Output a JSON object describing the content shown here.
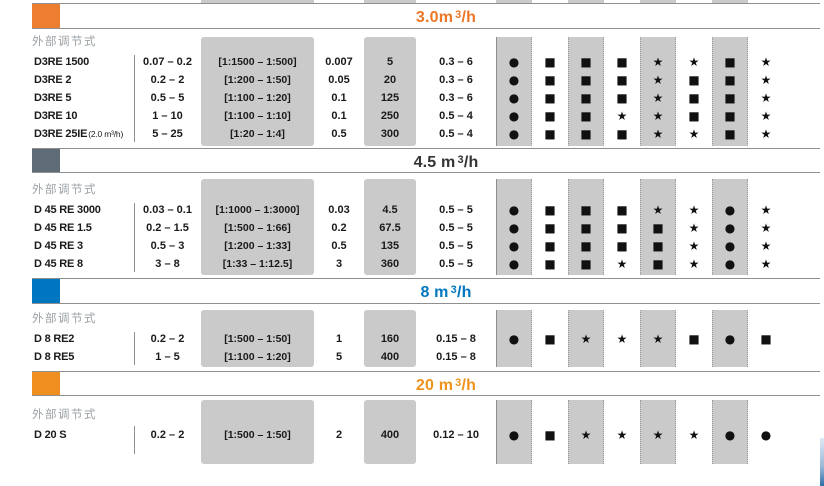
{
  "table": {
    "group_label": "外部调节式",
    "legend_symbols": {
      "circle": "●",
      "square": "■",
      "star": "★"
    },
    "sections": [
      {
        "header": {
          "text": "3.0m",
          "sup": "3",
          "suffix": "/h",
          "color": "#ED7627",
          "square": "#ED7D31"
        },
        "rows": [
          {
            "model": "D3RE 1500",
            "note": "",
            "capacity_l_h": "0.07 – 0.2",
            "turndown_ratio": "[1:1500 – 1:500]",
            "ml_per_stroke": "0.007",
            "max_strokes_min": "5",
            "pressure_bar": "0.3 – 6",
            "symbols": [
              "●",
              "■",
              "■",
              "■",
              "★",
              "★",
              "■",
              "★"
            ]
          },
          {
            "model": "D3RE 2",
            "note": "",
            "capacity_l_h": "0.2 – 2",
            "turndown_ratio": "[1:200 – 1:50]",
            "ml_per_stroke": "0.05",
            "max_strokes_min": "20",
            "pressure_bar": "0.3 – 6",
            "symbols": [
              "●",
              "■",
              "■",
              "■",
              "★",
              "■",
              "■",
              "★"
            ]
          },
          {
            "model": "D3RE 5",
            "note": "",
            "capacity_l_h": "0.5 – 5",
            "turndown_ratio": "[1:100 – 1:20]",
            "ml_per_stroke": "0.1",
            "max_strokes_min": "125",
            "pressure_bar": "0.3 – 6",
            "symbols": [
              "●",
              "■",
              "■",
              "■",
              "★",
              "■",
              "■",
              "★"
            ]
          },
          {
            "model": "D3RE 10",
            "note": "",
            "capacity_l_h": "1 – 10",
            "turndown_ratio": "[1:100 – 1:10]",
            "ml_per_stroke": "0.1",
            "max_strokes_min": "250",
            "pressure_bar": "0.5 – 4",
            "symbols": [
              "●",
              "■",
              "■",
              "★",
              "★",
              "■",
              "■",
              "★"
            ]
          },
          {
            "model": "D3RE 25IE",
            "note": "(2.0 m³/h)",
            "capacity_l_h": "5 – 25",
            "turndown_ratio": "[1:20 – 1:4]",
            "ml_per_stroke": "0.5",
            "max_strokes_min": "300",
            "pressure_bar": "0.5 – 4",
            "symbols": [
              "●",
              "■",
              "■",
              "■",
              "★",
              "★",
              "■",
              "★"
            ]
          }
        ]
      },
      {
        "header": {
          "text": "4.5 m",
          "sup": "3",
          "suffix": "/h",
          "color": "#333333",
          "square": "#5E6C77"
        },
        "rows": [
          {
            "model": "D 45 RE 3000",
            "note": "",
            "capacity_l_h": "0.03 – 0.1",
            "turndown_ratio": "[1:1000 – 1:3000]",
            "ml_per_stroke": "0.03",
            "max_strokes_min": "4.5",
            "pressure_bar": "0.5 – 5",
            "symbols": [
              "●",
              "■",
              "■",
              "■",
              "★",
              "★",
              "●",
              "★"
            ]
          },
          {
            "model": "D 45 RE 1.5",
            "note": "",
            "capacity_l_h": "0.2 – 1.5",
            "turndown_ratio": "[1:500 – 1:66]",
            "ml_per_stroke": "0.2",
            "max_strokes_min": "67.5",
            "pressure_bar": "0.5 – 5",
            "symbols": [
              "●",
              "■",
              "■",
              "■",
              "■",
              "★",
              "●",
              "★"
            ]
          },
          {
            "model": "D 45 RE 3",
            "note": "",
            "capacity_l_h": "0.5 – 3",
            "turndown_ratio": "[1:200 – 1:33]",
            "ml_per_stroke": "0.5",
            "max_strokes_min": "135",
            "pressure_bar": "0.5 – 5",
            "symbols": [
              "●",
              "■",
              "■",
              "■",
              "■",
              "★",
              "●",
              "★"
            ]
          },
          {
            "model": "D 45 RE 8",
            "note": "",
            "capacity_l_h": "3 – 8",
            "turndown_ratio": "[1:33 – 1:12.5]",
            "ml_per_stroke": "3",
            "max_strokes_min": "360",
            "pressure_bar": "0.5 – 5",
            "symbols": [
              "●",
              "■",
              "■",
              "★",
              "■",
              "★",
              "●",
              "★"
            ]
          }
        ]
      },
      {
        "header": {
          "text": "8 m",
          "sup": "3",
          "suffix": "/h",
          "color": "#0076C0",
          "square": "#0076C0"
        },
        "rows": [
          {
            "model": "D 8 RE2",
            "note": "",
            "capacity_l_h": "0.2 – 2",
            "turndown_ratio": "[1:500 – 1:50]",
            "ml_per_stroke": "1",
            "max_strokes_min": "160",
            "pressure_bar": "0.15 – 8",
            "symbols": []
          },
          {
            "model": "D 8 RE5",
            "note": "",
            "capacity_l_h": "1 – 5",
            "turndown_ratio": "[1:100 – 1:20]",
            "ml_per_stroke": "5",
            "max_strokes_min": "400",
            "pressure_bar": "0.15 – 8",
            "symbols": []
          }
        ],
        "shared_symbols": [
          "●",
          "■",
          "★",
          "★",
          "★",
          "■",
          "●",
          "■"
        ]
      },
      {
        "header": {
          "text": "20 m",
          "sup": "3",
          "suffix": "/h",
          "color": "#F0931E",
          "square": "#EF8F1F"
        },
        "rows": [
          {
            "model": "D 20 S",
            "note": "",
            "capacity_l_h": "0.2 – 2",
            "turndown_ratio": "[1:500 – 1:50]",
            "ml_per_stroke": "2",
            "max_strokes_min": "400",
            "pressure_bar": "0.12 – 10",
            "symbols": [
              "●",
              "■",
              "★",
              "★",
              "★",
              "★",
              "●",
              "●"
            ]
          }
        ]
      }
    ]
  }
}
